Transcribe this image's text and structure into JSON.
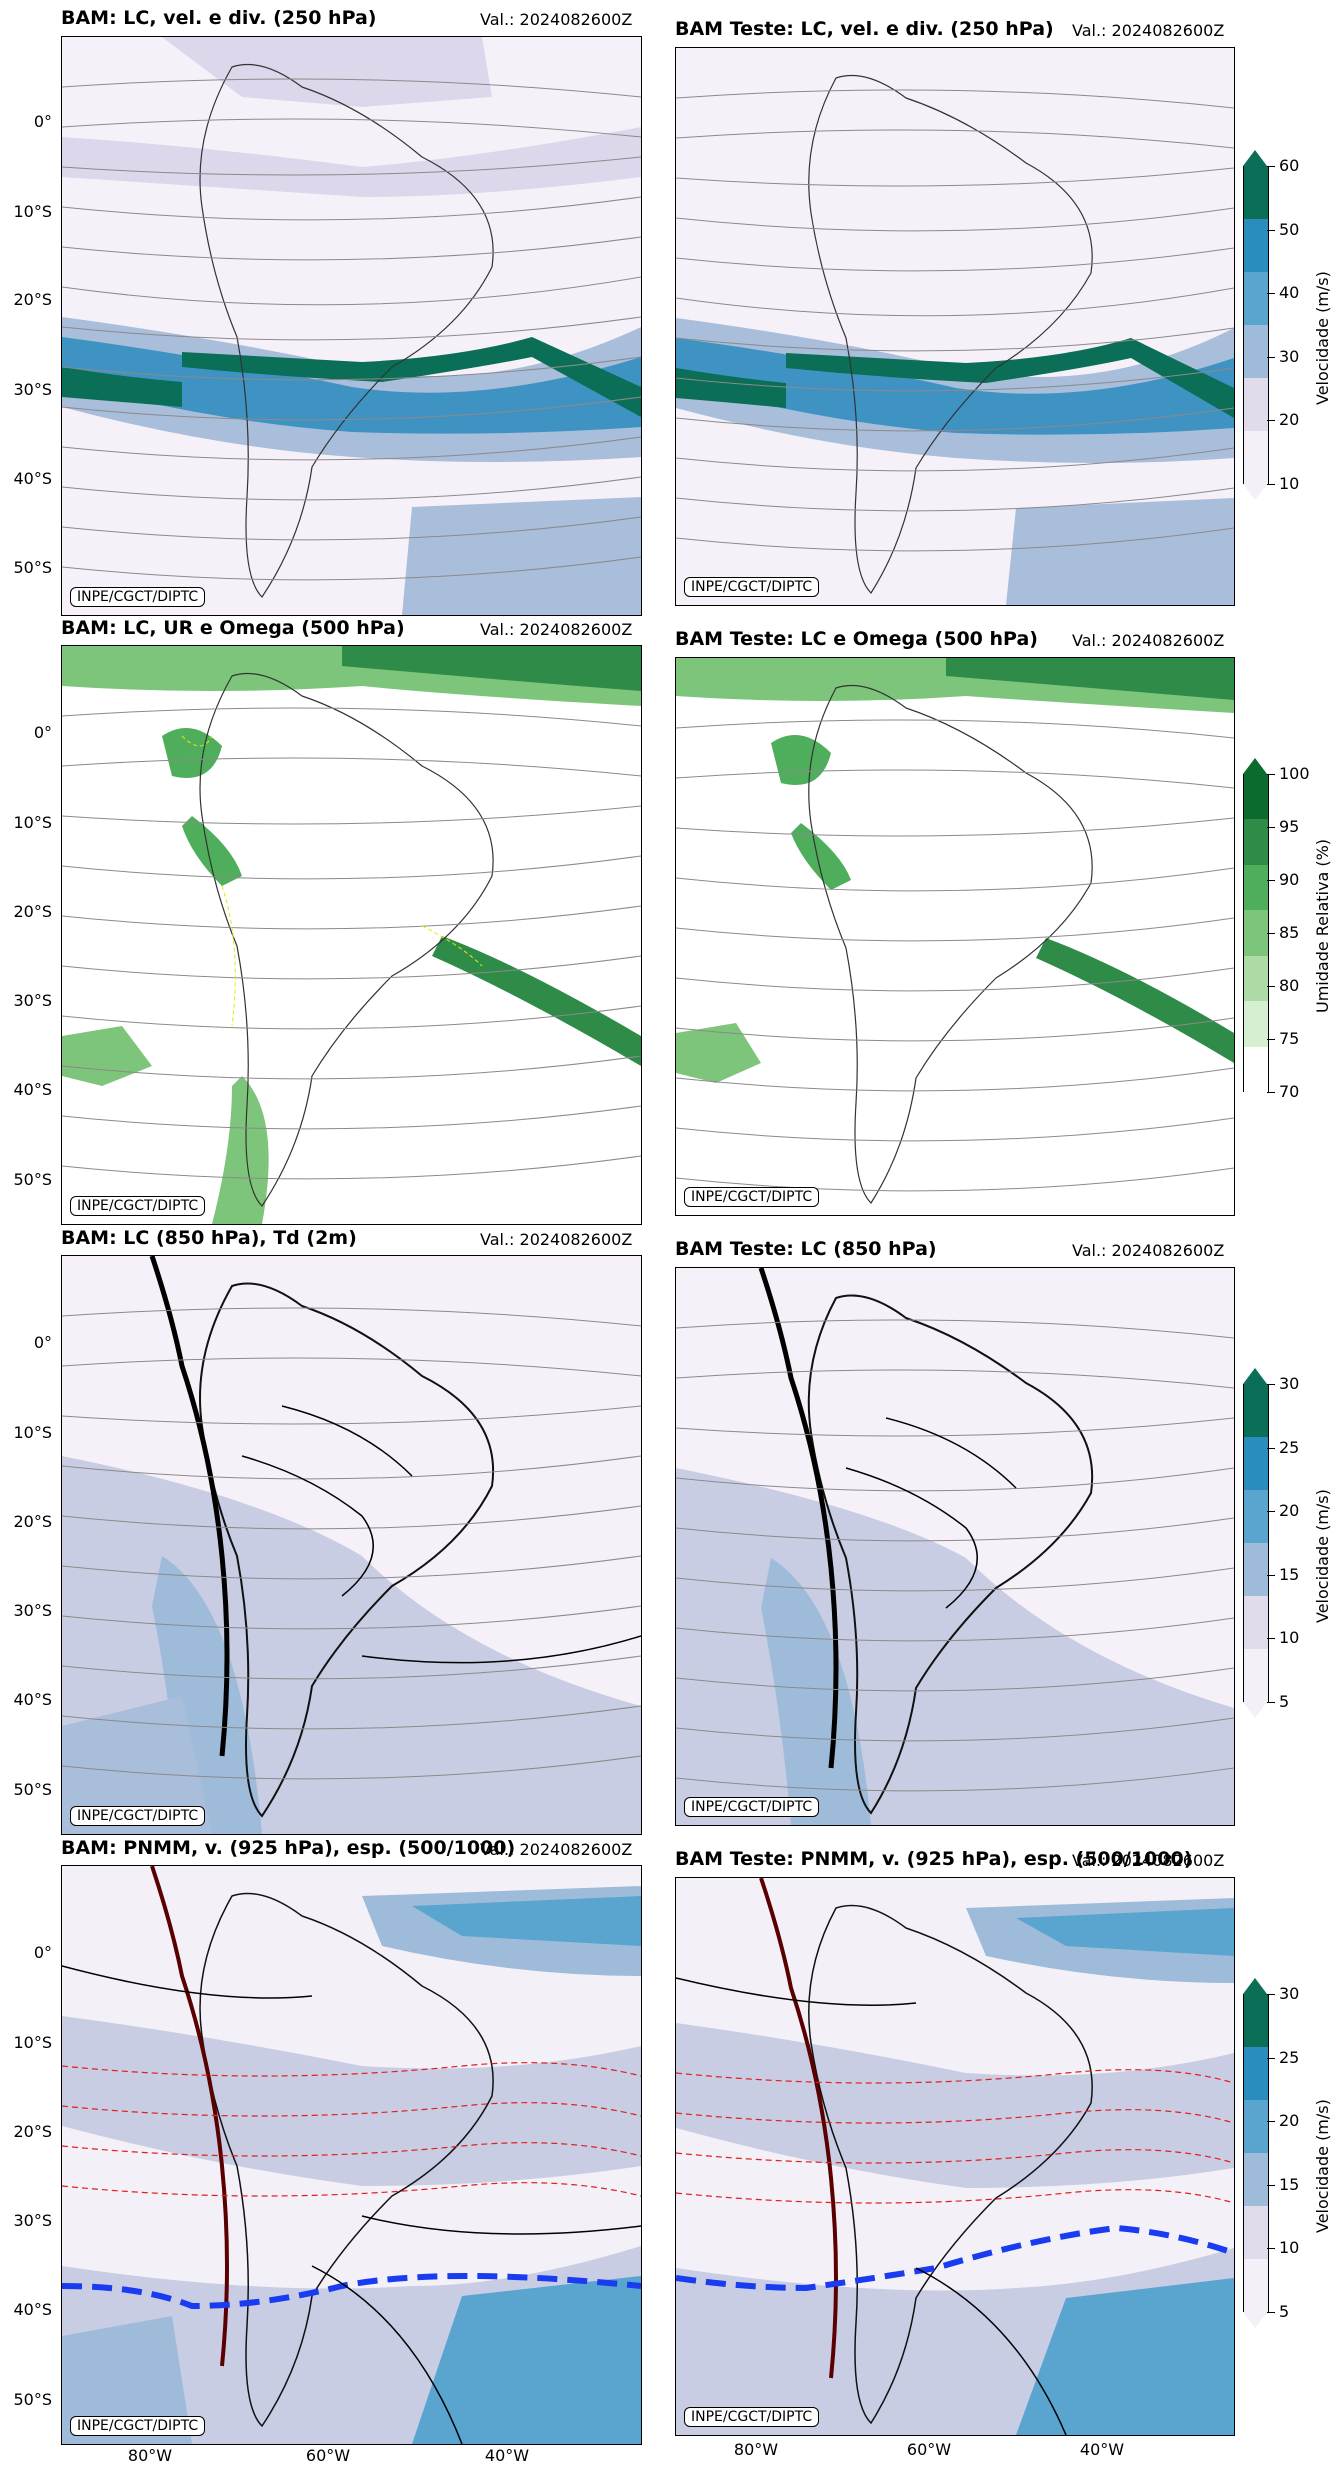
{
  "credit": "INPE/CGCT/DIPTC",
  "lat_labels": [
    "0°",
    "10°S",
    "20°S",
    "30°S",
    "40°S",
    "50°S"
  ],
  "lon_labels": [
    "80°W",
    "60°W",
    "40°W"
  ],
  "rows": [
    {
      "left_title": "BAM: LC, vel. e div. (250 hPa)",
      "right_title": "BAM Teste: LC, vel. e div. (250 hPa)",
      "valid": "Val.: 2024082600Z",
      "colorbar": {
        "label": "Velocidade (m/s)",
        "ticks": [
          "60",
          "50",
          "40",
          "30",
          "20",
          "10"
        ],
        "colors": [
          "#0b6e57",
          "#2b8cbe",
          "#5aa5cf",
          "#9ebcda",
          "#e0dcec",
          "#f4f0f7"
        ]
      }
    },
    {
      "left_title": "BAM: LC, UR e Omega (500 hPa)",
      "right_title": "BAM Teste: LC e Omega (500 hPa)",
      "valid": "Val.: 2024082600Z",
      "colorbar": {
        "label": "Umidade Relativa (%)",
        "ticks": [
          "100",
          "95",
          "90",
          "85",
          "80",
          "75",
          "70"
        ],
        "colors": [
          "#0b6b2e",
          "#2e8b48",
          "#4fae5b",
          "#7cc57a",
          "#aedba5",
          "#d6efd0",
          "#ffffff"
        ]
      }
    },
    {
      "left_title": "BAM: LC (850 hPa), Td (2m)",
      "right_title": "BAM Teste: LC (850 hPa)",
      "valid": "Val.: 2024082600Z",
      "colorbar": {
        "label": "Velocidade (m/s)",
        "ticks": [
          "30",
          "25",
          "20",
          "15",
          "10",
          "5"
        ],
        "colors": [
          "#0b6e57",
          "#2b8cbe",
          "#5aa5cf",
          "#9ebcda",
          "#e0dcec",
          "#f4f0f7"
        ]
      }
    },
    {
      "left_title": "BAM: PNMM, v. (925 hPa), esp. (500/1000)",
      "right_title": "BAM Teste: PNMM, v. (925 hPa), esp. (500/1000)",
      "valid": "Val.: 2024082600Z",
      "colorbar": {
        "label": "Velocidade (m/s)",
        "ticks": [
          "30",
          "25",
          "20",
          "15",
          "10",
          "5"
        ],
        "colors": [
          "#0b6e57",
          "#2b8cbe",
          "#5aa5cf",
          "#9ebcda",
          "#e0dcec",
          "#f4f0f7"
        ]
      }
    }
  ]
}
